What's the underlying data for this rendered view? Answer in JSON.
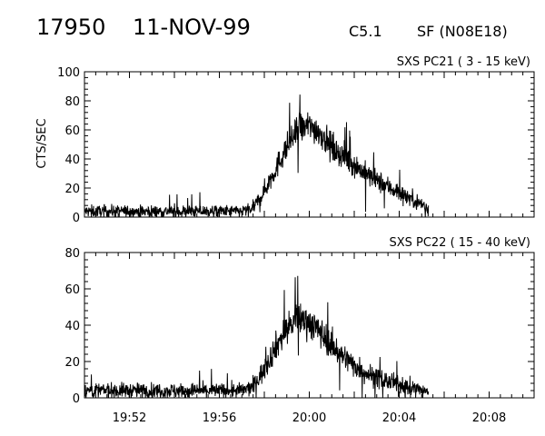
{
  "header": {
    "event_number": "17950",
    "date": "11-NOV-99",
    "goes_class": "C5.1",
    "flare_label": "SF (N08E18)"
  },
  "colors": {
    "trace": "#000000",
    "axes": "#000000",
    "background": "#ffffff"
  },
  "chart_data": [
    {
      "type": "line",
      "title": "SXS PC21  (  3 - 15 keV)",
      "ylabel": "CTS/SEC",
      "xlabel": "",
      "xlim": [
        "19:50",
        "20:10"
      ],
      "ylim": [
        0,
        100
      ],
      "yticks": [
        0,
        20,
        40,
        60,
        80,
        100
      ],
      "xtick_labels": [],
      "grid": false,
      "legend": "none",
      "series": [
        {
          "x": [
            "19:50",
            "19:51",
            "19:52",
            "19:53",
            "19:54",
            "19:55",
            "19:56",
            "19:57",
            "19:57.5",
            "19:58",
            "19:58.5",
            "19:59",
            "19:59.5",
            "20:00",
            "20:00.5",
            "20:01",
            "20:01.5",
            "20:02",
            "20:02.5",
            "20:03",
            "20:03.5",
            "20:04",
            "20:04.5",
            "20:05",
            "20:05.3"
          ],
          "values": [
            4,
            4,
            4,
            4,
            4,
            4,
            4,
            4,
            6,
            18,
            33,
            48,
            60,
            63,
            58,
            48,
            42,
            36,
            30,
            25,
            21,
            17,
            13,
            9,
            6
          ]
        }
      ]
    },
    {
      "type": "line",
      "title": "SXS PC22  ( 15 - 40 keV)",
      "ylabel": "",
      "xlabel": "",
      "xlim": [
        "19:50",
        "20:10"
      ],
      "ylim": [
        0,
        80
      ],
      "yticks": [
        0,
        20,
        40,
        60,
        80
      ],
      "xtick_labels": [
        "19:52",
        "19:56",
        "20:00",
        "20:04",
        "20:08"
      ],
      "grid": false,
      "legend": "none",
      "series": [
        {
          "x": [
            "19:50",
            "19:51",
            "19:52",
            "19:53",
            "19:54",
            "19:55",
            "19:56",
            "19:57",
            "19:57.5",
            "19:58",
            "19:58.5",
            "19:59",
            "19:59.5",
            "20:00",
            "20:00.5",
            "20:01",
            "20:01.5",
            "20:02",
            "20:02.5",
            "20:03",
            "20:03.5",
            "20:04",
            "20:04.5",
            "20:05",
            "20:05.3"
          ],
          "values": [
            4,
            4,
            4,
            4,
            4,
            4,
            4,
            4,
            6,
            16,
            28,
            38,
            44,
            42,
            36,
            29,
            23,
            18,
            14,
            11,
            9,
            7,
            6,
            4,
            3
          ]
        }
      ]
    }
  ]
}
